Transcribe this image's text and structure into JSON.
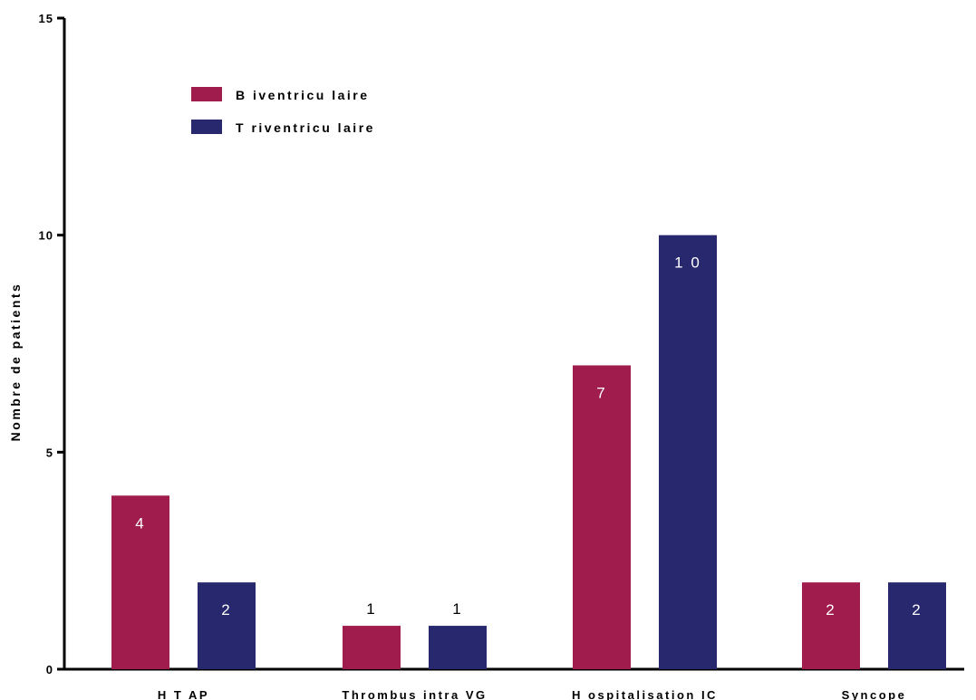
{
  "chart_data": {
    "type": "bar",
    "title": "",
    "xlabel": "",
    "ylabel": "Nombre de patients",
    "ylim": [
      0,
      15
    ],
    "yticks": [
      0,
      5,
      10,
      15
    ],
    "grid": false,
    "legend_position": "top-left",
    "categories": [
      "H T AP",
      "Thrombus intra VG",
      "H ospitalisation IC",
      "Syncope"
    ],
    "series": [
      {
        "name": "B iventricu laire",
        "color": "#a01c4c",
        "values": [
          4,
          1,
          7,
          2
        ],
        "labels": [
          "4",
          "1",
          "7",
          "2"
        ]
      },
      {
        "name": "T riventricu laire",
        "color": "#27286e",
        "values": [
          2,
          1,
          10,
          2
        ],
        "labels": [
          "2",
          "1",
          "1 0",
          "2"
        ]
      }
    ]
  }
}
